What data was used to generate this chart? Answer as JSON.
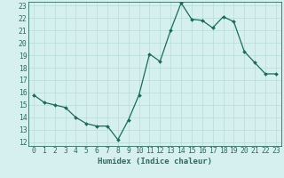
{
  "x": [
    0,
    1,
    2,
    3,
    4,
    5,
    6,
    7,
    8,
    9,
    10,
    11,
    12,
    13,
    14,
    15,
    16,
    17,
    18,
    19,
    20,
    21,
    22,
    23
  ],
  "y": [
    15.8,
    15.2,
    15.0,
    14.8,
    14.0,
    13.5,
    13.3,
    13.3,
    12.2,
    13.8,
    15.8,
    19.1,
    18.5,
    21.0,
    23.2,
    21.9,
    21.8,
    21.2,
    22.1,
    21.7,
    19.3,
    18.4,
    17.5,
    17.5
  ],
  "line_color": "#1a6b5a",
  "marker": "D",
  "marker_size": 2.0,
  "bg_color": "#d6f0ef",
  "grid_color": "#b8dbd8",
  "xlabel": "Humidex (Indice chaleur)",
  "ylim_min": 11.7,
  "ylim_max": 23.3,
  "xlim_min": -0.5,
  "xlim_max": 23.5,
  "yticks": [
    12,
    13,
    14,
    15,
    16,
    17,
    18,
    19,
    20,
    21,
    22,
    23
  ],
  "xticks": [
    0,
    1,
    2,
    3,
    4,
    5,
    6,
    7,
    8,
    9,
    10,
    11,
    12,
    13,
    14,
    15,
    16,
    17,
    18,
    19,
    20,
    21,
    22,
    23
  ],
  "xlabel_fontsize": 6.5,
  "tick_fontsize": 5.8,
  "axis_color": "#2e6b5a",
  "line_width": 0.9
}
